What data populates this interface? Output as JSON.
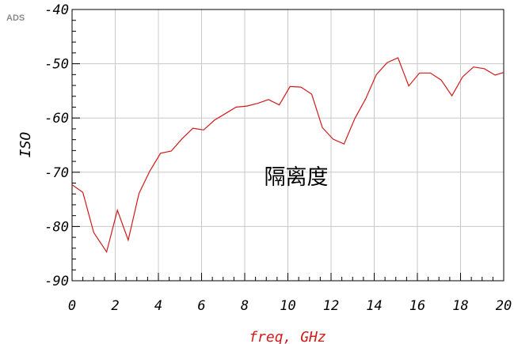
{
  "badge": "ADS",
  "chart_data": {
    "type": "line",
    "title": "",
    "xlabel": "freq, GHz",
    "ylabel": "ISO",
    "annotation": "隔离度",
    "xlim": [
      0,
      20
    ],
    "ylim": [
      -90,
      -40
    ],
    "xticks": [
      0,
      2,
      4,
      6,
      8,
      10,
      12,
      14,
      16,
      18,
      20
    ],
    "yticks": [
      -90,
      -80,
      -70,
      -60,
      -50,
      -40
    ],
    "grid": true,
    "colors": {
      "series": "#d11a1a",
      "grid": "#c8c8c8",
      "axis": "#000000"
    },
    "series": [
      {
        "x": [
          0,
          0.5,
          1.0,
          1.6,
          2.1,
          2.6,
          3.1,
          3.6,
          4.1,
          4.6,
          5.1,
          5.6,
          6.1,
          6.6,
          7.1,
          7.6,
          8.1,
          8.6,
          9.1,
          9.6,
          10.1,
          10.6,
          11.1,
          11.6,
          12.1,
          12.6,
          13.1,
          13.6,
          14.1,
          14.6,
          15.1,
          15.6,
          16.1,
          16.6,
          17.1,
          17.6,
          18.1,
          18.6,
          19.1,
          19.6,
          20.0
        ],
        "y": [
          -72.3,
          -73.7,
          -81.1,
          -84.7,
          -77.0,
          -82.5,
          -73.9,
          -69.8,
          -66.5,
          -66.1,
          -63.8,
          -61.9,
          -62.2,
          -60.4,
          -59.2,
          -58.0,
          -57.8,
          -57.3,
          -56.6,
          -57.6,
          -54.2,
          -54.3,
          -55.6,
          -61.8,
          -63.9,
          -64.8,
          -60.1,
          -56.5,
          -52.0,
          -49.8,
          -48.9,
          -54.1,
          -51.7,
          -51.7,
          -53.0,
          -55.9,
          -52.4,
          -50.6,
          -50.9,
          -52.1,
          -51.6
        ]
      }
    ]
  }
}
